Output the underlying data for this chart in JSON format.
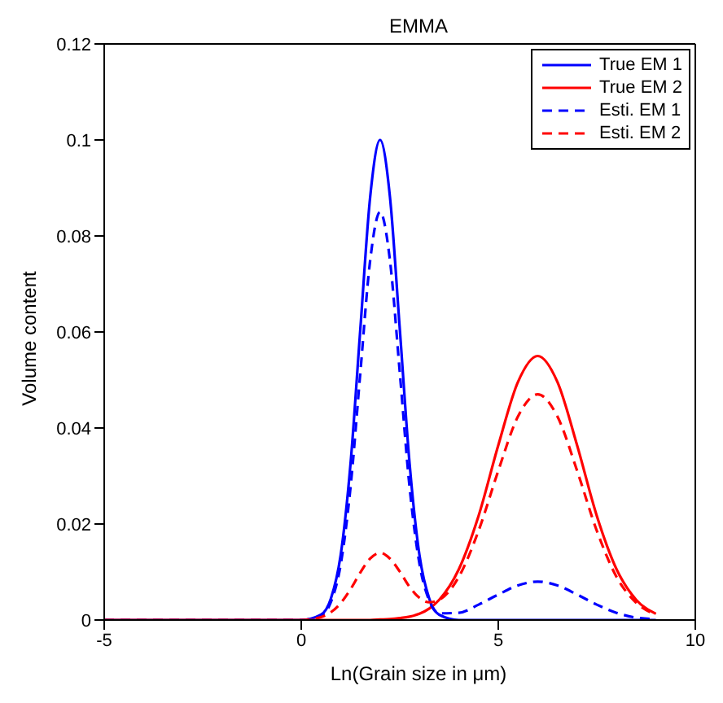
{
  "chart_data": {
    "type": "line",
    "title": "EMMA",
    "xlabel": "Ln(Grain size in μm)",
    "ylabel": "Volume content",
    "x": [
      -5,
      -2,
      0,
      0.5,
      0.75,
      1,
      1.25,
      1.5,
      1.75,
      2,
      2.25,
      2.5,
      2.75,
      3,
      3.25,
      3.5,
      4,
      4.5,
      5,
      5.5,
      6,
      6.5,
      7,
      7.5,
      8,
      8.5,
      9
    ],
    "series": [
      {
        "name": "True EM 1",
        "color": "#0000ff",
        "line_style": "solid",
        "values": [
          0,
          0,
          0,
          0.0011,
          0.0044,
          0.0135,
          0.0325,
          0.0607,
          0.0882,
          0.1,
          0.0882,
          0.0607,
          0.0325,
          0.0135,
          0.0044,
          0.0011,
          0,
          0,
          0,
          0,
          0,
          0,
          0,
          0,
          0,
          0,
          0
        ]
      },
      {
        "name": "True EM 2",
        "color": "#ff0000",
        "line_style": "solid",
        "values": [
          0,
          0,
          0,
          0,
          0,
          0,
          0,
          0,
          0,
          0.0001,
          0.0002,
          0.0004,
          0.0007,
          0.0013,
          0.0024,
          0.0042,
          0.0106,
          0.0217,
          0.0364,
          0.0496,
          0.055,
          0.0496,
          0.0364,
          0.0217,
          0.0106,
          0.0042,
          0.0013
        ]
      },
      {
        "name": "Esti. EM 1",
        "color": "#0000ff",
        "line_style": "dashed",
        "values": [
          0,
          0,
          0,
          0.0009,
          0.0037,
          0.0115,
          0.0276,
          0.0516,
          0.075,
          0.085,
          0.075,
          0.0516,
          0.0276,
          0.0117,
          0.004,
          0.0014,
          0.0015,
          0.0032,
          0.0053,
          0.0072,
          0.008,
          0.0072,
          0.0053,
          0.0032,
          0.0015,
          0.0005,
          0.0002
        ]
      },
      {
        "name": "Esti. EM 2",
        "color": "#ff0000",
        "line_style": "dashed",
        "values": [
          0,
          0,
          0,
          0.0006,
          0.0016,
          0.0035,
          0.0064,
          0.0099,
          0.0128,
          0.014,
          0.0128,
          0.0101,
          0.0069,
          0.0046,
          0.0037,
          0.0042,
          0.009,
          0.0186,
          0.0311,
          0.0424,
          0.047,
          0.0424,
          0.0311,
          0.0186,
          0.009,
          0.0036,
          0.0011
        ]
      }
    ],
    "xlim": [
      -5,
      10
    ],
    "xticks": [
      -5,
      0,
      5,
      10
    ],
    "ylim": [
      0,
      0.12
    ],
    "yticks": [
      0,
      0.02,
      0.04,
      0.06,
      0.08,
      0.1,
      0.12
    ],
    "grid": false,
    "legend": "top right",
    "marker": "none"
  }
}
